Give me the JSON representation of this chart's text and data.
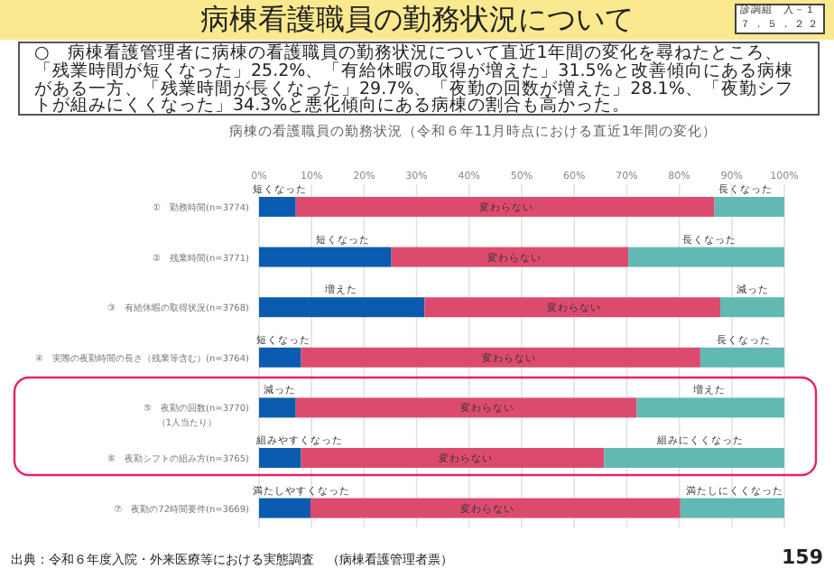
{
  "chart_data": {
    "type": "bar",
    "orientation": "horizontal",
    "stacked": true,
    "title": "病棟看護職員の勤務状況について",
    "subtitle": "病棟の看護職員の勤務状況（令和６年11月時点における直近1年間の変化）",
    "categories": [
      "①　勤務時間(n=3774)",
      "②　残業時間(n=3771)",
      "③　有給休暇の取得状況(n=3768)",
      "④　実際の夜勤時間の長さ（残業等含む）(n=3764)",
      "⑤　夜勤の回数(n=3770)\n（1人当たり）",
      "⑥　夜勤シフトの組み方(n=3765)",
      "⑦　夜勤の72時間要件(n=3669)"
    ],
    "series": [
      {
        "color": "#0b5cb0",
        "values": [
          7.0,
          25.2,
          31.5,
          8.0,
          7.0,
          8.0,
          9.8
        ]
      },
      {
        "color": "#dc4b6d",
        "values": [
          79.7,
          45.1,
          56.3,
          76.0,
          64.9,
          57.7,
          70.4
        ]
      },
      {
        "color": "#62b9b4",
        "values": [
          13.3,
          29.7,
          12.2,
          16.0,
          28.1,
          34.3,
          19.8
        ]
      }
    ],
    "xlim": [
      0,
      100
    ],
    "xticks": [
      {
        "value": 0,
        "label": "0%"
      },
      {
        "value": 10,
        "label": "10%"
      },
      {
        "value": 20,
        "label": "20%"
      },
      {
        "value": 30,
        "label": "30%"
      },
      {
        "value": 40,
        "label": "40%"
      },
      {
        "value": 50,
        "label": "50%"
      },
      {
        "value": 60,
        "label": "60%"
      },
      {
        "value": 70,
        "label": "70%"
      },
      {
        "value": 80,
        "label": "80%"
      },
      {
        "value": 90,
        "label": "90%"
      },
      {
        "value": 100,
        "label": "100%"
      }
    ],
    "grid": "x",
    "annotations": [
      "診調組　入－１",
      "７．５．２２",
      "○　病棟看護管理者に病棟の看護職員の勤務状況について直近1年間の変化を尋ねたところ、「残業時間が短くなった」25.2%、「有給休暇の取得が増えた」31.5%と改善傾向にある病棟がある一方、「残業時間が長くなった」29.7%、「夜勤の回数が増えた」28.1%、「夜勤シフトが組みにくくなった」34.3%と悪化傾向にある病棟の割合も高かった。",
      "出典：令和６年度入院・外来医療等における実態調査　（病棟看護管理者票）",
      "159",
      {
        "text": "短くなった",
        "x": 3.9,
        "y": "①　勤務時間(n=3774)"
      },
      {
        "text": "変わらない",
        "x": 47,
        "y": "①　勤務時間(n=3774)"
      },
      {
        "text": "長くなった",
        "x": 92.6,
        "y": "①　勤務時間(n=3774)"
      },
      {
        "text": "短くなった",
        "x": 16,
        "y": "②　残業時間(n=3771)"
      },
      {
        "text": "変わらない",
        "x": 48.6,
        "y": "②　残業時間(n=3771)"
      },
      {
        "text": "長くなった",
        "x": 85.7,
        "y": "②　残業時間(n=3771)"
      },
      {
        "text": "増えた",
        "x": 15.7,
        "y": "③　有給休暇の取得状況(n=3768)"
      },
      {
        "text": "変わらない",
        "x": 60,
        "y": "③　有給休暇の取得状況(n=3768)"
      },
      {
        "text": "減った",
        "x": 94,
        "y": "③　有給休暇の取得状況(n=3768)"
      },
      {
        "text": "短くなった",
        "x": 4.6,
        "y": "④　実際の夜勤時間の長さ（残業等含む）(n=3764)"
      },
      {
        "text": "変わらない",
        "x": 47.6,
        "y": "④　実際の夜勤時間の長さ（残業等含む）(n=3764)"
      },
      {
        "text": "長くなった",
        "x": 92.3,
        "y": "④　実際の夜勤時間の長さ（残業等含む）(n=3764)"
      },
      {
        "text": "減った",
        "x": 3.9,
        "y": "⑤　夜勤の回数(n=3770)\n（1人当たり）"
      },
      {
        "text": "変わらない",
        "x": 43.5,
        "y": "⑤　夜勤の回数(n=3770)\n（1人当たり）"
      },
      {
        "text": "増えた",
        "x": 85.7,
        "y": "⑤　夜勤の回数(n=3770)\n（1人当たり）"
      },
      {
        "text": "組みやすくなった",
        "x": 7.7,
        "y": "⑥　夜勤シフトの組み方(n=3765)"
      },
      {
        "text": "変わらない",
        "x": 39.4,
        "y": "⑥　夜勤シフトの組み方(n=3765)"
      },
      {
        "text": "組みにくくなった",
        "x": 84,
        "y": "⑥　夜勤シフトの組み方(n=3765)"
      },
      {
        "text": "満たしやすくなった",
        "x": 8,
        "y": "⑦　夜勤の72時間要件(n=3669)"
      },
      {
        "text": "変わらない",
        "x": 43.5,
        "y": "⑦　夜勤の72時間要件(n=3669)"
      },
      {
        "text": "満たしにくくなった",
        "x": 90.5,
        "y": "⑦　夜勤の72時間要件(n=3669)"
      }
    ]
  }
}
